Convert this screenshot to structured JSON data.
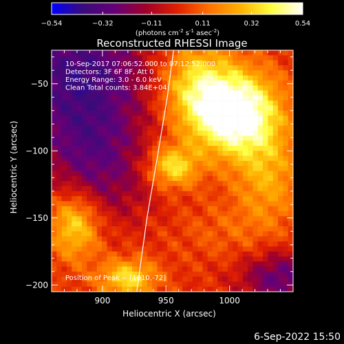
{
  "chart_data": {
    "type": "heatmap",
    "title": "Reconstructed RHESSI Image",
    "xlabel": "Heliocentric X (arcsec)",
    "ylabel": "Heliocentric Y (arcsec)",
    "xlim": [
      860,
      1050
    ],
    "ylim": [
      -205,
      -25
    ],
    "x_ticks": [
      900,
      950,
      1000
    ],
    "y_ticks": [
      -50,
      -100,
      -150,
      -200
    ],
    "colorbar": {
      "label_main": "(photons cm",
      "label_sup1": "-2",
      "label_mid1": " s",
      "label_sup2": "-1",
      "label_mid2": " asec",
      "label_sup3": "-2",
      "label_end": ")",
      "min": -0.54,
      "max": 0.54,
      "tick_values": [
        -0.54,
        -0.32,
        -0.11,
        0.11,
        0.32,
        0.54
      ],
      "tick_labels": [
        "-0.54",
        "-0.32",
        "-0.11",
        "0.11",
        "0.32",
        "0.54"
      ],
      "colors": [
        "#0000ff",
        "#3a0b7a",
        "#660077",
        "#a0002a",
        "#e02000",
        "#ff7000",
        "#ffb000",
        "#ffff40",
        "#ffffff"
      ]
    },
    "annotations": [
      "10-Sep-2017 07:06:52.000 to 07:12:52.000",
      "Detectors: 3F 6F 8F, Att 0",
      "Energy Range: 3.0 - 6.0 keV",
      "Clean     Total counts: 3.84E+04"
    ],
    "peak_label": "Position of Peak = [1010,-72]",
    "peak": [
      1010,
      -72
    ],
    "limb_curve": [
      [
        956,
        -25
      ],
      [
        951,
        -60
      ],
      [
        944,
        -100
      ],
      [
        935,
        -150
      ],
      [
        927,
        -205
      ]
    ],
    "sources": [
      {
        "x": 1005,
        "y": -72,
        "sx": 24,
        "sy": 22,
        "amp": 0.62
      },
      {
        "x": 972,
        "y": -50,
        "sx": 20,
        "sy": 24,
        "amp": 0.3
      },
      {
        "x": 955,
        "y": -112,
        "sx": 14,
        "sy": 11,
        "amp": 0.36
      },
      {
        "x": 1030,
        "y": -120,
        "sx": 18,
        "sy": 24,
        "amp": 0.22
      },
      {
        "x": 878,
        "y": -155,
        "sx": 14,
        "sy": 18,
        "amp": 0.34
      },
      {
        "x": 920,
        "y": -195,
        "sx": 16,
        "sy": 10,
        "amp": 0.34
      },
      {
        "x": 1000,
        "y": -160,
        "sx": 30,
        "sy": 16,
        "amp": 0.08
      },
      {
        "x": 880,
        "y": -40,
        "sx": 40,
        "sy": 30,
        "amp": -0.38
      },
      {
        "x": 890,
        "y": -95,
        "sx": 30,
        "sy": 26,
        "amp": -0.26
      },
      {
        "x": 1040,
        "y": -195,
        "sx": 22,
        "sy": 14,
        "amp": -0.3
      },
      {
        "x": 905,
        "y": -130,
        "sx": 28,
        "sy": 20,
        "amp": -0.12
      }
    ],
    "background_level": 0.02
  },
  "footer": {
    "timestamp": "6-Sep-2022 15:50"
  }
}
